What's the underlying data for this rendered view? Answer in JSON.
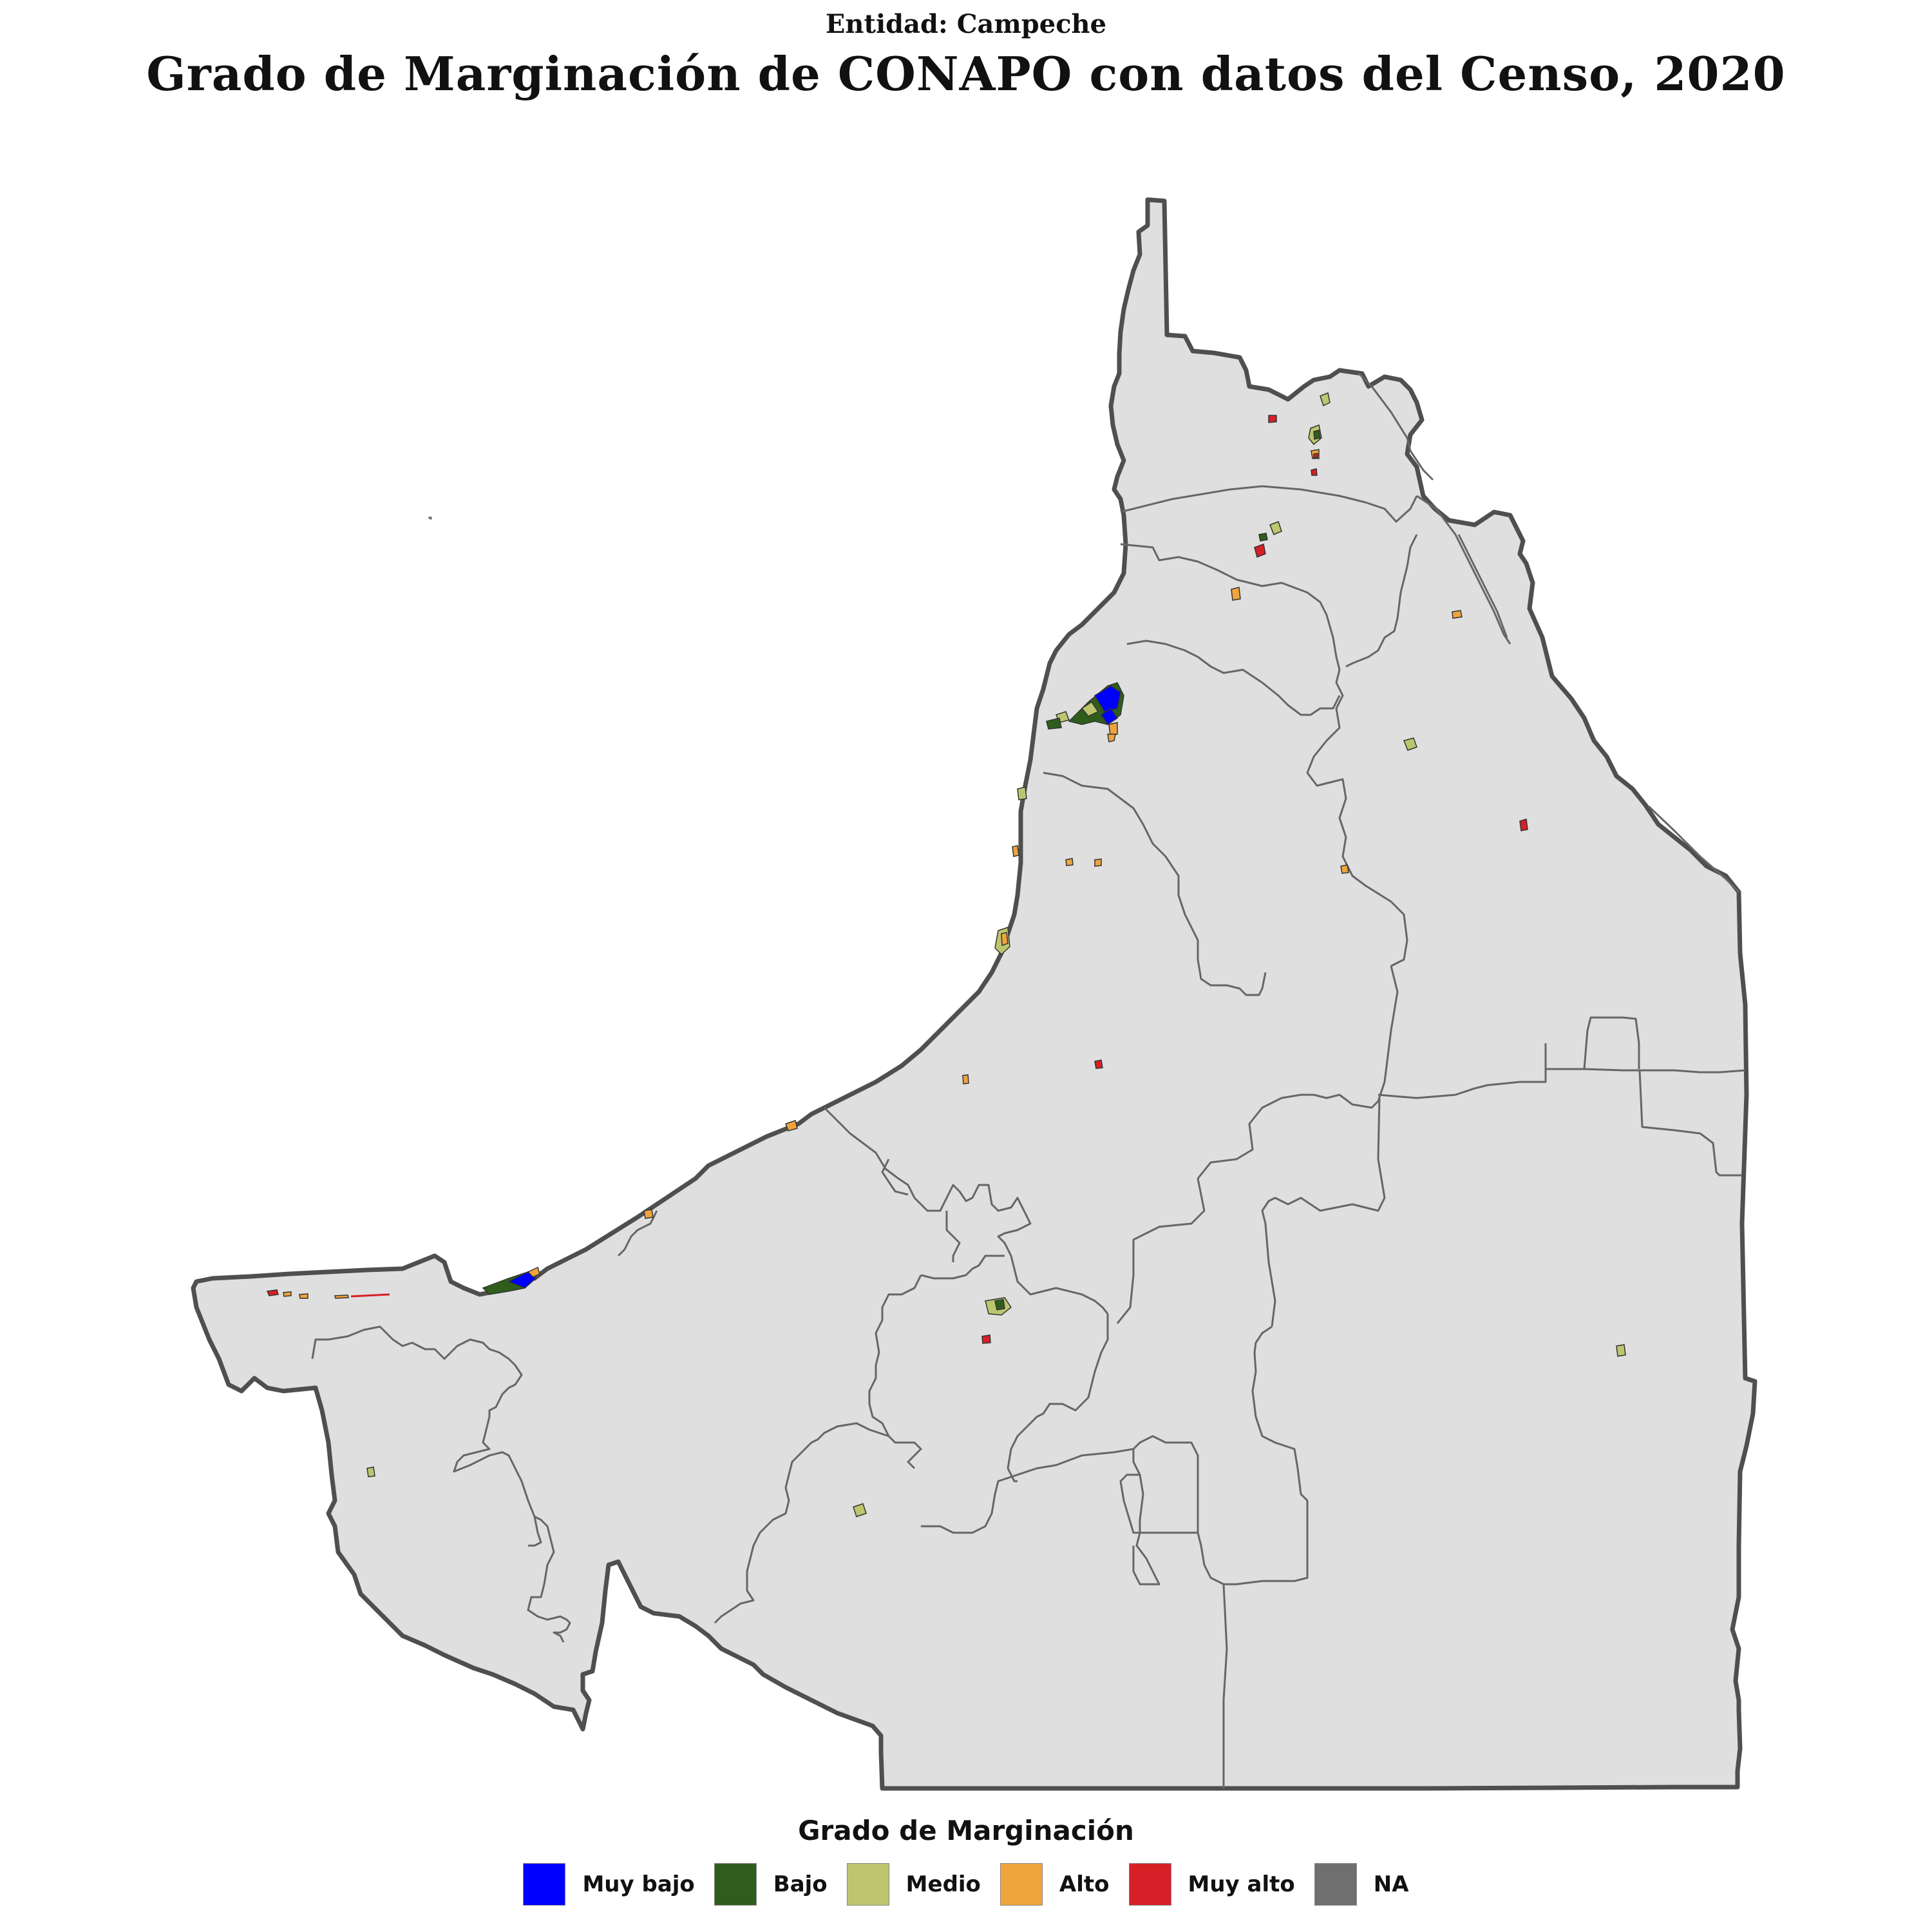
{
  "header": {
    "subtitle": "Entidad: Campeche",
    "title": "Grado de Marginación de CONAPO con datos del Censo, 2020"
  },
  "map": {
    "fill_color": "#dfdfdf",
    "border_color": "#4f4f4f",
    "municipality_line_color": "#666666"
  },
  "legend": {
    "title": "Grado de Marginación",
    "items": [
      {
        "label": "Muy bajo",
        "color": "#0000ff"
      },
      {
        "label": "Bajo",
        "color": "#2f5e1c"
      },
      {
        "label": "Medio",
        "color": "#bdc66e"
      },
      {
        "label": "Alto",
        "color": "#efa43c"
      },
      {
        "label": "Muy alto",
        "color": "#d71f27"
      },
      {
        "label": "NA",
        "color": "#6f6f6f"
      }
    ]
  }
}
